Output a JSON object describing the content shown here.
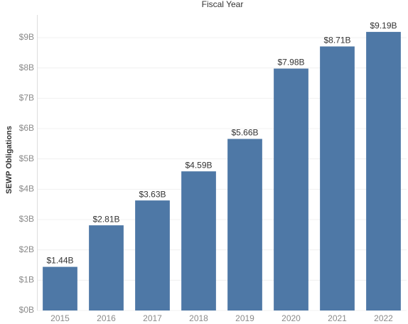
{
  "chart_data": {
    "type": "bar",
    "title": "Fiscal Year",
    "y_label": "SEWP Obligations",
    "categories": [
      "2015",
      "2016",
      "2017",
      "2018",
      "2019",
      "2020",
      "2021",
      "2022"
    ],
    "values": [
      1.44,
      2.81,
      3.63,
      4.59,
      5.66,
      7.98,
      8.71,
      9.19
    ],
    "value_labels": [
      "$1.44B",
      "$2.81B",
      "$3.63B",
      "$4.59B",
      "$5.66B",
      "$7.98B",
      "$8.71B",
      "$9.19B"
    ],
    "color": "#4e78a6",
    "ylim": [
      0,
      9.75
    ],
    "yticks": [
      {
        "value": 0,
        "label": "$0B"
      },
      {
        "value": 1,
        "label": "$1B"
      },
      {
        "value": 2,
        "label": "$2B"
      },
      {
        "value": 3,
        "label": "$3B"
      },
      {
        "value": 4,
        "label": "$4B"
      },
      {
        "value": 5,
        "label": "$5B"
      },
      {
        "value": 6,
        "label": "$6B"
      },
      {
        "value": 7,
        "label": "$7B"
      },
      {
        "value": 8,
        "label": "$8B"
      },
      {
        "value": 9,
        "label": "$9B"
      }
    ],
    "grid": true
  }
}
